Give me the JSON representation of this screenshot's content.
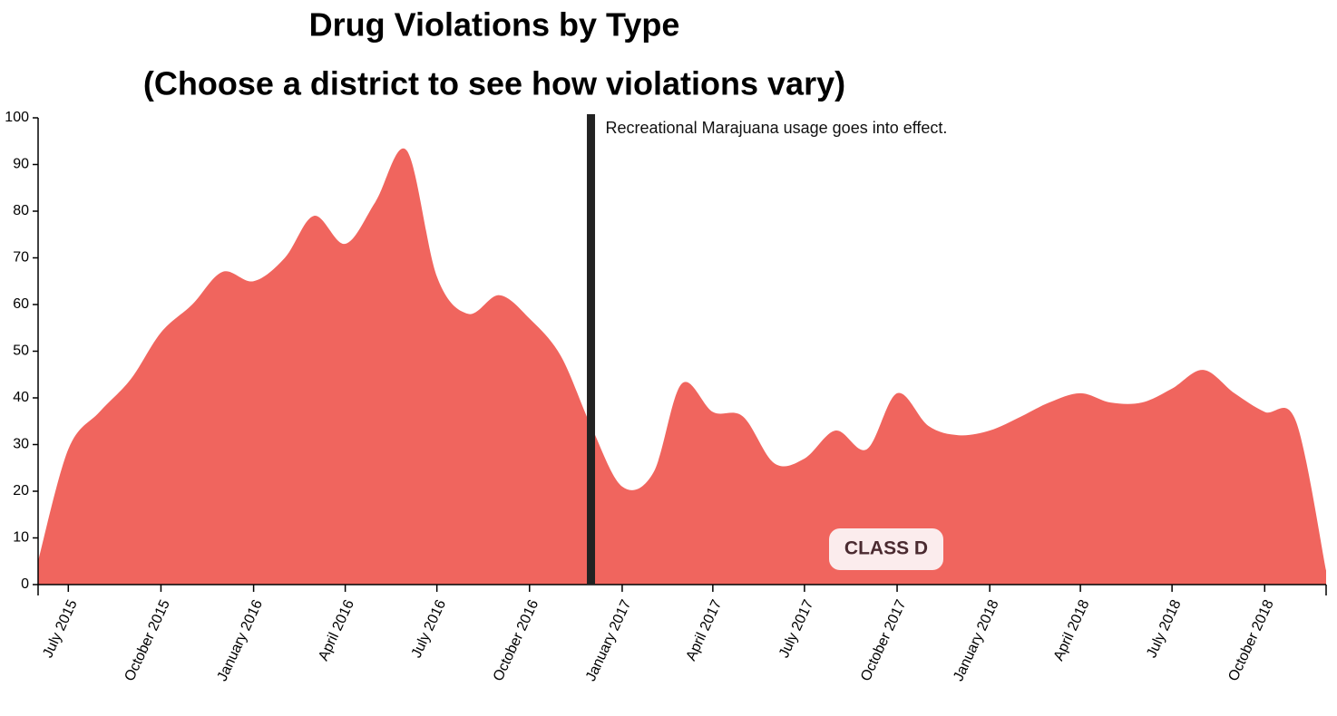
{
  "chart_data": {
    "type": "area",
    "title": "Drug Violations by Type",
    "subtitle": "(Choose a district to see how violations vary)",
    "x": [
      "2015-06",
      "2015-07",
      "2015-08",
      "2015-09",
      "2015-10",
      "2015-11",
      "2015-12",
      "2016-01",
      "2016-02",
      "2016-03",
      "2016-04",
      "2016-05",
      "2016-06",
      "2016-07",
      "2016-08",
      "2016-09",
      "2016-10",
      "2016-11",
      "2016-12",
      "2017-01",
      "2017-02",
      "2017-03",
      "2017-04",
      "2017-05",
      "2017-06",
      "2017-07",
      "2017-08",
      "2017-09",
      "2017-10",
      "2017-11",
      "2017-12",
      "2018-01",
      "2018-02",
      "2018-03",
      "2018-04",
      "2018-05",
      "2018-06",
      "2018-07",
      "2018-08",
      "2018-09",
      "2018-10",
      "2018-11",
      "2018-12"
    ],
    "series": [
      {
        "name": "CLASS D",
        "color": "#f0655e",
        "values": [
          5,
          29,
          37,
          44,
          54,
          60,
          67,
          65,
          70,
          79,
          73,
          82,
          93,
          66,
          58,
          62,
          57,
          49,
          34,
          21,
          24,
          43,
          37,
          36,
          26,
          27,
          33,
          29,
          41,
          34,
          32,
          33,
          36,
          39,
          41,
          39,
          39,
          42,
          46,
          41,
          37,
          35,
          3
        ]
      }
    ],
    "xlim": [
      "2015-06",
      "2018-12"
    ],
    "xticks": [
      {
        "value": "2015-07",
        "label": "July 2015"
      },
      {
        "value": "2015-10",
        "label": "October 2015"
      },
      {
        "value": "2016-01",
        "label": "January 2016"
      },
      {
        "value": "2016-04",
        "label": "April 2016"
      },
      {
        "value": "2016-07",
        "label": "July 2016"
      },
      {
        "value": "2016-10",
        "label": "October 2016"
      },
      {
        "value": "2017-01",
        "label": "January 2017"
      },
      {
        "value": "2017-04",
        "label": "April 2017"
      },
      {
        "value": "2017-07",
        "label": "July 2017"
      },
      {
        "value": "2017-10",
        "label": "October 2017"
      },
      {
        "value": "2018-01",
        "label": "January 2018"
      },
      {
        "value": "2018-04",
        "label": "April 2018"
      },
      {
        "value": "2018-07",
        "label": "July 2018"
      },
      {
        "value": "2018-10",
        "label": "October 2018"
      }
    ],
    "ylim": [
      0,
      100
    ],
    "yticks": [
      0,
      10,
      20,
      30,
      40,
      50,
      60,
      70,
      80,
      90,
      100
    ],
    "annotations": [
      {
        "x": "2016-12",
        "text": "Recreational Marajuana usage goes into effect."
      }
    ]
  }
}
